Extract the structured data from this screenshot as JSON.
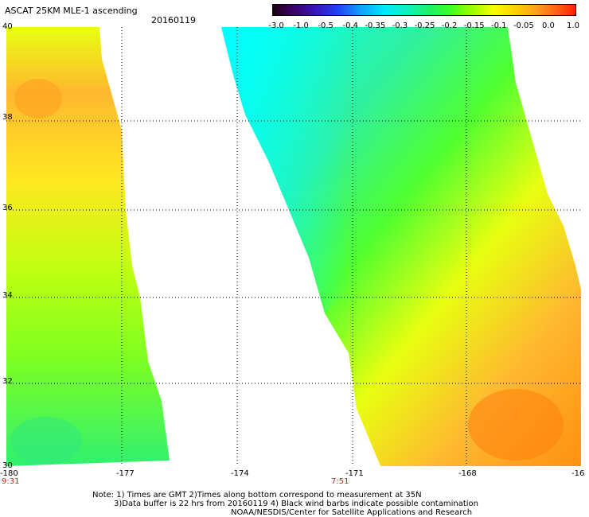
{
  "header": {
    "title": "ASCAT 25KM MLE-1 ascending",
    "date": "20160119"
  },
  "colorbar": {
    "labels": [
      "-3.0",
      "-1.0",
      "-0.5",
      "-0.4",
      "-0.35",
      "-0.3",
      "-0.25",
      "-0.2",
      "-0.15",
      "-0.1",
      "-0.05",
      "0.0",
      "1.0"
    ]
  },
  "axes": {
    "lat_labels": [
      "40",
      "38",
      "36",
      "34",
      "32",
      "30"
    ],
    "lon_labels": [
      "-180",
      "-177",
      "-174",
      "-171",
      "-168",
      "-16"
    ],
    "time_labels": [
      "9:31",
      "7:51"
    ]
  },
  "notes": {
    "line1": "Note: 1) Times are GMT 2)Times along bottom correspond to measurement at 35N",
    "line2": "3)Data buffer is 22 hrs from 20160119 4) Black wind barbs indicate possible contamination",
    "line3": "NOAA/NESDIS/Center for Satellite Applications and Research"
  }
}
